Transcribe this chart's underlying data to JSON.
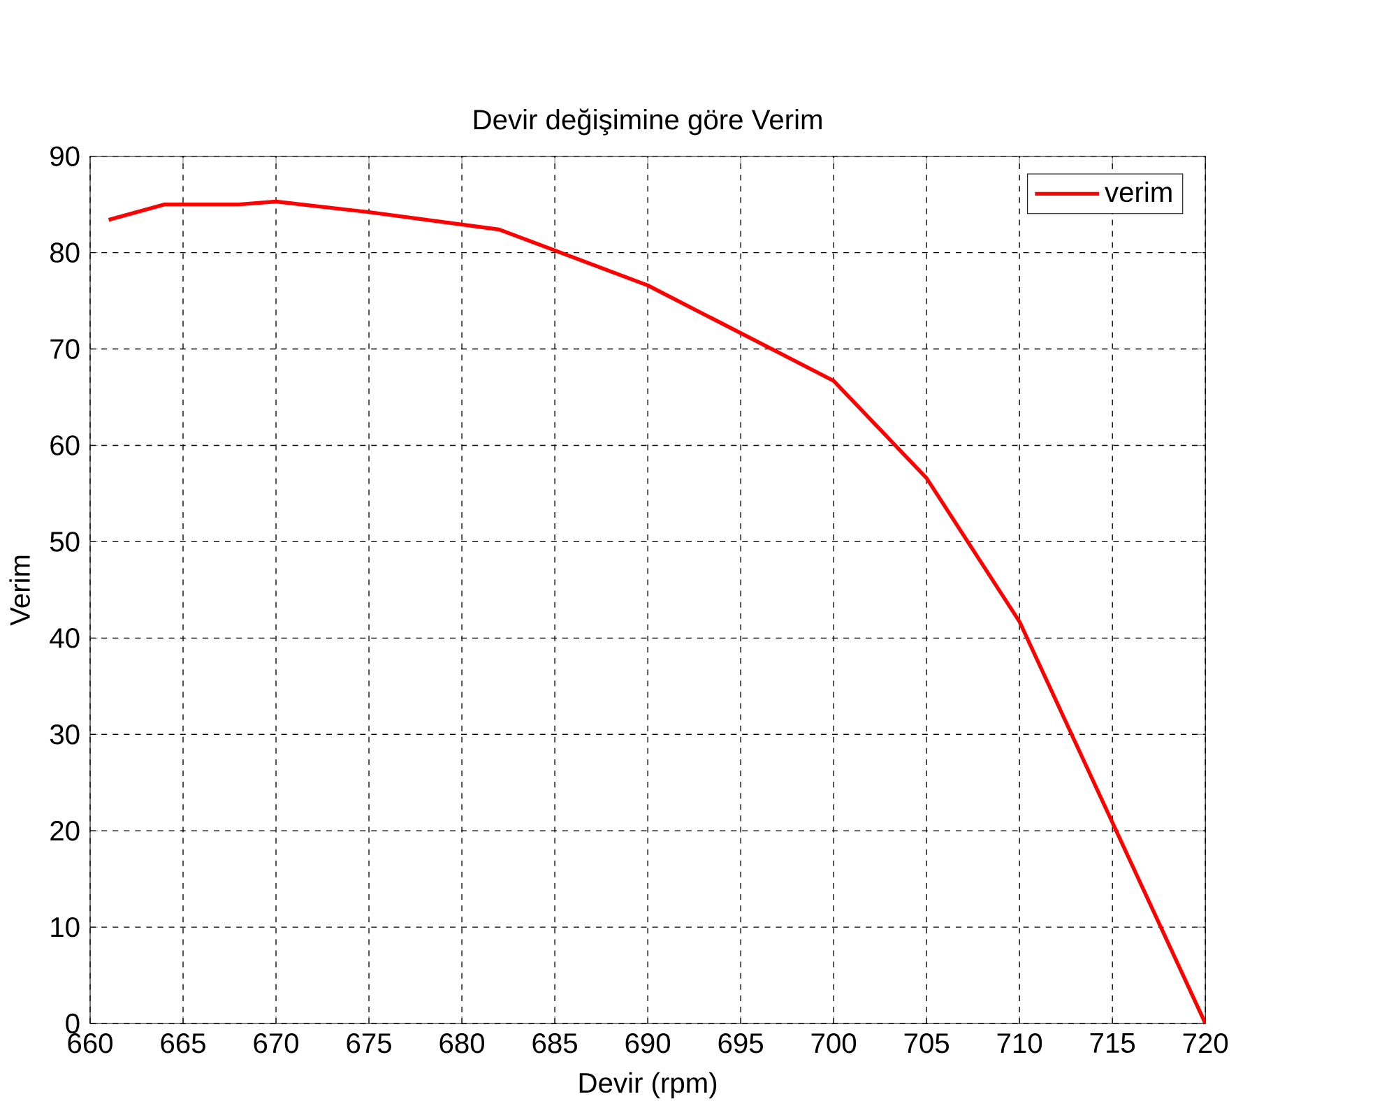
{
  "chart_data": {
    "type": "line",
    "title": "Devir değişimine göre Verim",
    "xlabel": "Devir (rpm)",
    "ylabel": "Verim",
    "x": [
      661,
      664,
      668,
      670,
      675,
      682,
      690,
      700,
      705,
      710,
      720
    ],
    "series": [
      {
        "name": "verim",
        "color": "#ff0000",
        "values": [
          83.4,
          85,
          85,
          85.3,
          84.2,
          82.4,
          76.6,
          66.7,
          56.6,
          41.7,
          0
        ]
      }
    ],
    "xlim": [
      660,
      720
    ],
    "ylim": [
      0,
      90
    ],
    "xticks": [
      660,
      665,
      670,
      675,
      680,
      685,
      690,
      695,
      700,
      705,
      710,
      715,
      720
    ],
    "yticks": [
      0,
      10,
      20,
      30,
      40,
      50,
      60,
      70,
      80,
      90
    ],
    "grid": true,
    "legend": "top right",
    "marker": "none",
    "line_style": "solid"
  }
}
